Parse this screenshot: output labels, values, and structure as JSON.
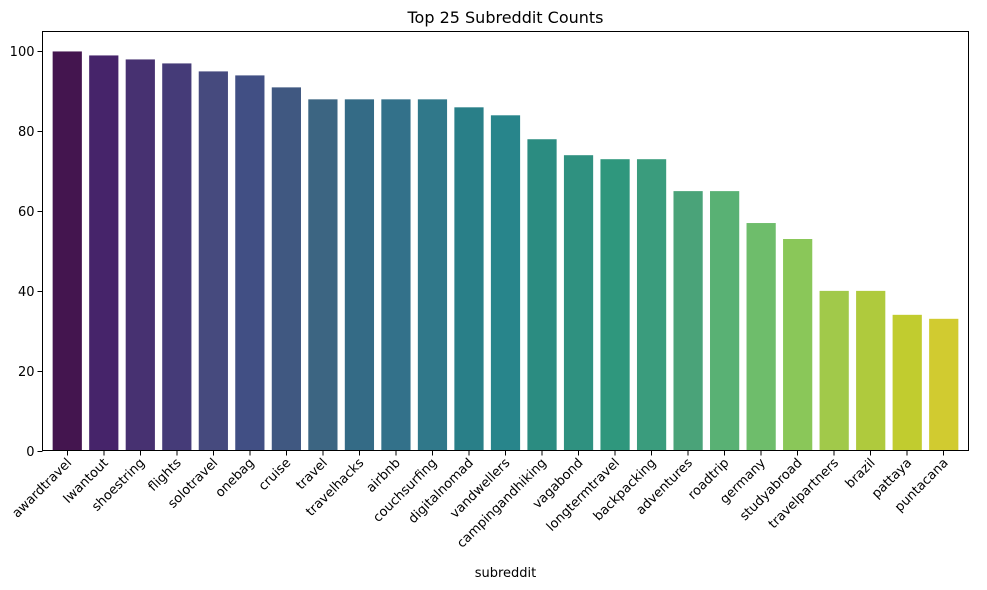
{
  "chart_data": {
    "type": "bar",
    "title": "Top 25 Subreddit Counts",
    "xlabel": "subreddit",
    "ylabel": "",
    "ylim": [
      0,
      105
    ],
    "yticks": [
      0,
      20,
      40,
      60,
      80,
      100
    ],
    "grid": false,
    "legend": "none",
    "colormap": "viridis",
    "categories": [
      "awardtravel",
      "Iwantout",
      "shoestring",
      "flights",
      "solotravel",
      "onebag",
      "cruise",
      "travel",
      "travelhacks",
      "airbnb",
      "couchsurfing",
      "digitalnomad",
      "vandwellers",
      "campingandhiking",
      "vagabond",
      "longtermtravel",
      "backpacking",
      "adventures",
      "roadtrip",
      "germany",
      "studyabroad",
      "travelpartners",
      "brazil",
      "pattaya",
      "puntacana"
    ],
    "values": [
      100,
      99,
      98,
      97,
      95,
      94,
      91,
      88,
      88,
      88,
      88,
      86,
      84,
      78,
      74,
      73,
      73,
      65,
      65,
      57,
      53,
      40,
      40,
      34,
      33
    ],
    "colors": [
      "#44154f",
      "#46246a",
      "#473171",
      "#453b78",
      "#464a7e",
      "#414f84",
      "#405881",
      "#3c6582",
      "#346b86",
      "#33718a",
      "#30788a",
      "#297f88",
      "#28858b",
      "#2b8c81",
      "#2f9180",
      "#2f977d",
      "#3a9c7d",
      "#4aa379",
      "#59b174",
      "#6ebd6b",
      "#8ac759",
      "#a1c94a",
      "#afca3d",
      "#c1cc2f",
      "#d1cb30"
    ]
  }
}
